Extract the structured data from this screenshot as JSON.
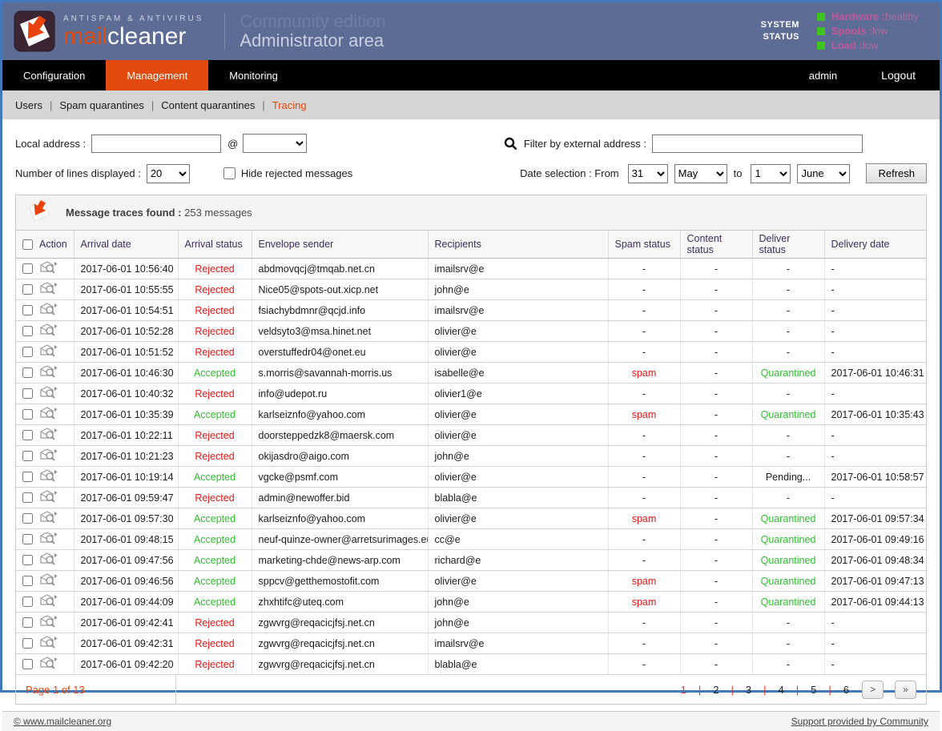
{
  "header": {
    "tagline": "ANTISPAM & ANTIVIRUS",
    "brand_mail": "mail",
    "brand_cleaner": "cleaner",
    "edition": "Community edition",
    "area": "Administrator area",
    "system_status_line1": "SYSTEM",
    "system_status_line2": "STATUS",
    "statuses": [
      {
        "label": "Hardware",
        "value": "healthy"
      },
      {
        "label": "Spools",
        "value": "low"
      },
      {
        "label": "Load",
        "value": "low"
      }
    ]
  },
  "nav": {
    "tabs": [
      {
        "label": "Configuration",
        "active": false
      },
      {
        "label": "Management",
        "active": true
      },
      {
        "label": "Monitoring",
        "active": false
      }
    ],
    "user": "admin",
    "logout": "Logout"
  },
  "subnav": {
    "items": [
      {
        "label": "Users",
        "active": false
      },
      {
        "label": "Spam quarantines",
        "active": false
      },
      {
        "label": "Content quarantines",
        "active": false
      },
      {
        "label": "Tracing",
        "active": true
      }
    ]
  },
  "filters": {
    "local_address_label": "Local address :",
    "local_address_value": "",
    "at_symbol": "@",
    "domain_selected": "",
    "external_label": "Filter by external address :",
    "external_value": "",
    "lines_label": "Number of lines displayed :",
    "lines_selected": "20",
    "hide_rejected_label": "Hide rejected messages",
    "date_label": "Date selection : From",
    "from_day": "31",
    "from_month": "May",
    "to_label": "to",
    "to_day": "1",
    "to_month": "June",
    "refresh_label": "Refresh"
  },
  "results": {
    "title": "Message traces found :",
    "count": "253 messages"
  },
  "table": {
    "columns": [
      "Action",
      "Arrival date",
      "Arrival status",
      "Envelope sender",
      "Recipients",
      "Spam status",
      "Content status",
      "Deliver status",
      "Delivery date"
    ],
    "rows": [
      {
        "date": "2017-06-01 10:56:40",
        "arrival": "Rejected",
        "sender": "abdmovqcj@tmqab.net.cn",
        "recipient": "imailsrv@e",
        "spam": "-",
        "content": "-",
        "deliver": "-",
        "delivered": "-"
      },
      {
        "date": "2017-06-01 10:55:55",
        "arrival": "Rejected",
        "sender": "Nice05@spots-out.xicp.net",
        "recipient": "john@e",
        "spam": "-",
        "content": "-",
        "deliver": "-",
        "delivered": "-"
      },
      {
        "date": "2017-06-01 10:54:51",
        "arrival": "Rejected",
        "sender": "fsiachybdmnr@qcjd.info",
        "recipient": "imailsrv@e",
        "spam": "-",
        "content": "-",
        "deliver": "-",
        "delivered": "-"
      },
      {
        "date": "2017-06-01 10:52:28",
        "arrival": "Rejected",
        "sender": "veldsyto3@msa.hinet.net",
        "recipient": "olivier@e",
        "spam": "-",
        "content": "-",
        "deliver": "-",
        "delivered": "-"
      },
      {
        "date": "2017-06-01 10:51:52",
        "arrival": "Rejected",
        "sender": "overstuffedr04@onet.eu",
        "recipient": "olivier@e",
        "spam": "-",
        "content": "-",
        "deliver": "-",
        "delivered": "-"
      },
      {
        "date": "2017-06-01 10:46:30",
        "arrival": "Accepted",
        "sender": "s.morris@savannah-morris.us",
        "recipient": "isabelle@e",
        "spam": "spam",
        "content": "-",
        "deliver": "Quarantined",
        "delivered": "2017-06-01 10:46:31"
      },
      {
        "date": "2017-06-01 10:40:32",
        "arrival": "Rejected",
        "sender": "info@udepot.ru",
        "recipient": "olivier1@e",
        "spam": "-",
        "content": "-",
        "deliver": "-",
        "delivered": "-"
      },
      {
        "date": "2017-06-01 10:35:39",
        "arrival": "Accepted",
        "sender": "karlseiznfo@yahoo.com",
        "recipient": "olivier@e",
        "spam": "spam",
        "content": "-",
        "deliver": "Quarantined",
        "delivered": "2017-06-01 10:35:43"
      },
      {
        "date": "2017-06-01 10:22:11",
        "arrival": "Rejected",
        "sender": "doorsteppedzk8@maersk.com",
        "recipient": "olivier@e",
        "spam": "-",
        "content": "-",
        "deliver": "-",
        "delivered": "-"
      },
      {
        "date": "2017-06-01 10:21:23",
        "arrival": "Rejected",
        "sender": "okijasdro@aigo.com",
        "recipient": "john@e",
        "spam": "-",
        "content": "-",
        "deliver": "-",
        "delivered": "-"
      },
      {
        "date": "2017-06-01 10:19:14",
        "arrival": "Accepted",
        "sender": "vgcke@psmf.com",
        "recipient": "olivier@e",
        "spam": "-",
        "content": "-",
        "deliver": "Pending...",
        "delivered": "2017-06-01 10:58:57"
      },
      {
        "date": "2017-06-01 09:59:47",
        "arrival": "Rejected",
        "sender": "admin@newoffer.bid",
        "recipient": "blabla@e",
        "spam": "-",
        "content": "-",
        "deliver": "-",
        "delivered": "-"
      },
      {
        "date": "2017-06-01 09:57:30",
        "arrival": "Accepted",
        "sender": "karlseiznfo@yahoo.com",
        "recipient": "olivier@e",
        "spam": "spam",
        "content": "-",
        "deliver": "Quarantined",
        "delivered": "2017-06-01 09:57:34"
      },
      {
        "date": "2017-06-01 09:48:15",
        "arrival": "Accepted",
        "sender": "neuf-quinze-owner@arretsurimages.eu",
        "recipient": "cc@e",
        "spam": "-",
        "content": "-",
        "deliver": "Quarantined",
        "delivered": "2017-06-01 09:49:16"
      },
      {
        "date": "2017-06-01 09:47:56",
        "arrival": "Accepted",
        "sender": "marketing-chde@news-arp.com",
        "recipient": "richard@e",
        "spam": "-",
        "content": "-",
        "deliver": "Quarantined",
        "delivered": "2017-06-01 09:48:34"
      },
      {
        "date": "2017-06-01 09:46:56",
        "arrival": "Accepted",
        "sender": "sppcv@getthemostofit.com",
        "recipient": "olivier@e",
        "spam": "spam",
        "content": "-",
        "deliver": "Quarantined",
        "delivered": "2017-06-01 09:47:13"
      },
      {
        "date": "2017-06-01 09:44:09",
        "arrival": "Accepted",
        "sender": "zhxhtifc@uteq.com",
        "recipient": "john@e",
        "spam": "spam",
        "content": "-",
        "deliver": "Quarantined",
        "delivered": "2017-06-01 09:44:13"
      },
      {
        "date": "2017-06-01 09:42:41",
        "arrival": "Rejected",
        "sender": "zgwvrg@reqacicjfsj.net.cn",
        "recipient": "john@e",
        "spam": "-",
        "content": "-",
        "deliver": "-",
        "delivered": "-"
      },
      {
        "date": "2017-06-01 09:42:31",
        "arrival": "Rejected",
        "sender": "zgwvrg@reqacicjfsj.net.cn",
        "recipient": "imailsrv@e",
        "spam": "-",
        "content": "-",
        "deliver": "-",
        "delivered": "-"
      },
      {
        "date": "2017-06-01 09:42:20",
        "arrival": "Rejected",
        "sender": "zgwvrg@reqacicjfsj.net.cn",
        "recipient": "blabla@e",
        "spam": "-",
        "content": "-",
        "deliver": "-",
        "delivered": "-"
      }
    ]
  },
  "pagination": {
    "page_label": "Page 1 of 13",
    "pages": [
      "1",
      "2",
      "3",
      "4",
      "5",
      "6"
    ],
    "current": "1",
    "next_label": ">",
    "last_label": "»"
  },
  "footer": {
    "left_link": "© www.mailcleaner.org",
    "right_link": "Support provided by Community"
  },
  "colors": {
    "header_bg": "#5c6c95",
    "accent_orange": "#e2490c",
    "status_red": "#f01414",
    "status_green": "#2fbe2f",
    "status_pink_label": "#c2589a",
    "led_green": "#3ec41e",
    "page_border_blue": "#4179bd"
  }
}
